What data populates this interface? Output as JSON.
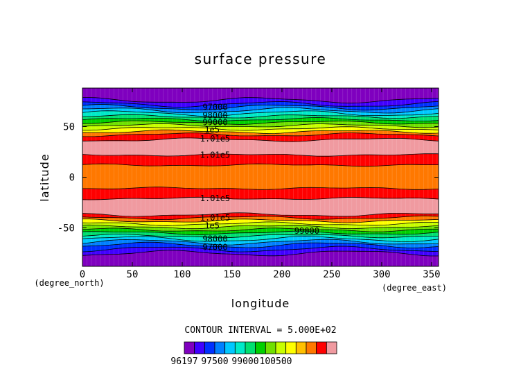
{
  "chart_data": {
    "type": "contour",
    "title": "surface pressure",
    "xlabel": "longitude",
    "ylabel": "latitude",
    "x_unit": "(degree_east)",
    "y_unit": "(degree_north)",
    "xlim": [
      0,
      357
    ],
    "ylim": [
      -88,
      88
    ],
    "x_ticks": [
      0,
      50,
      100,
      150,
      200,
      250,
      300,
      350
    ],
    "y_ticks": [
      -50,
      0,
      50
    ],
    "contour_interval_text": "CONTOUR INTERVAL = 5.000E+02",
    "colorbar": {
      "min": 96197,
      "max": 101000,
      "interval": 500,
      "tick_labels": [
        "96197",
        "97500",
        "99000",
        "100500"
      ],
      "colors": [
        "#7f00bf",
        "#4000ff",
        "#0030ff",
        "#0080ff",
        "#00c8ff",
        "#00eac8",
        "#00e070",
        "#00d000",
        "#70e000",
        "#c8ff00",
        "#ffff00",
        "#ffc000",
        "#ff7800",
        "#ff0000",
        "#f09aa0"
      ]
    },
    "bands": [
      {
        "from": -88,
        "to": -75,
        "level": 0
      },
      {
        "from": -75,
        "to": -71,
        "level": 1
      },
      {
        "from": -71,
        "to": -67,
        "level": 2
      },
      {
        "from": -67,
        "to": -64,
        "level": 3
      },
      {
        "from": -64,
        "to": -61,
        "level": 4
      },
      {
        "from": -61,
        "to": -58,
        "level": 5
      },
      {
        "from": -58,
        "to": -55,
        "level": 6
      },
      {
        "from": -55,
        "to": -52,
        "level": 7
      },
      {
        "from": -52,
        "to": -49,
        "level": 8
      },
      {
        "from": -49,
        "to": -46,
        "level": 9
      },
      {
        "from": -46,
        "to": -43,
        "level": 10
      },
      {
        "from": -43,
        "to": -40,
        "level": 12
      },
      {
        "from": -40,
        "to": -37,
        "level": 13
      },
      {
        "from": -37,
        "to": -21,
        "level": 14
      },
      {
        "from": -21,
        "to": -11,
        "level": 13
      },
      {
        "from": -11,
        "to": 12,
        "level": 12
      },
      {
        "from": 12,
        "to": 22,
        "level": 13
      },
      {
        "from": 22,
        "to": 37,
        "level": 14
      },
      {
        "from": 37,
        "to": 42,
        "level": 13
      },
      {
        "from": 42,
        "to": 45,
        "level": 12
      },
      {
        "from": 45,
        "to": 48,
        "level": 10
      },
      {
        "from": 48,
        "to": 51,
        "level": 9
      },
      {
        "from": 51,
        "to": 54,
        "level": 8
      },
      {
        "from": 54,
        "to": 57,
        "level": 7
      },
      {
        "from": 57,
        "to": 60,
        "level": 6
      },
      {
        "from": 60,
        "to": 63,
        "level": 5
      },
      {
        "from": 63,
        "to": 66,
        "level": 4
      },
      {
        "from": 66,
        "to": 69,
        "level": 3
      },
      {
        "from": 69,
        "to": 72,
        "level": 2
      },
      {
        "from": 72,
        "to": 76,
        "level": 1
      },
      {
        "from": 76,
        "to": 88,
        "level": 0
      }
    ],
    "contour_labels": [
      {
        "text": "97000",
        "lon": 133,
        "lat": 69
      },
      {
        "text": "98000",
        "lon": 133,
        "lat": 61
      },
      {
        "text": "99000",
        "lon": 133,
        "lat": 54
      },
      {
        "text": "1e5",
        "lon": 130,
        "lat": 47
      },
      {
        "text": "1.01e5",
        "lon": 133,
        "lat": 38
      },
      {
        "text": "1.01e5",
        "lon": 133,
        "lat": 22
      },
      {
        "text": "1.01e5",
        "lon": 133,
        "lat": -21
      },
      {
        "text": "1.01e5",
        "lon": 133,
        "lat": -40
      },
      {
        "text": "1e5",
        "lon": 130,
        "lat": -48
      },
      {
        "text": "99000",
        "lon": 225,
        "lat": -53
      },
      {
        "text": "98000",
        "lon": 133,
        "lat": -61
      },
      {
        "text": "97000",
        "lon": 133,
        "lat": -69
      }
    ]
  }
}
